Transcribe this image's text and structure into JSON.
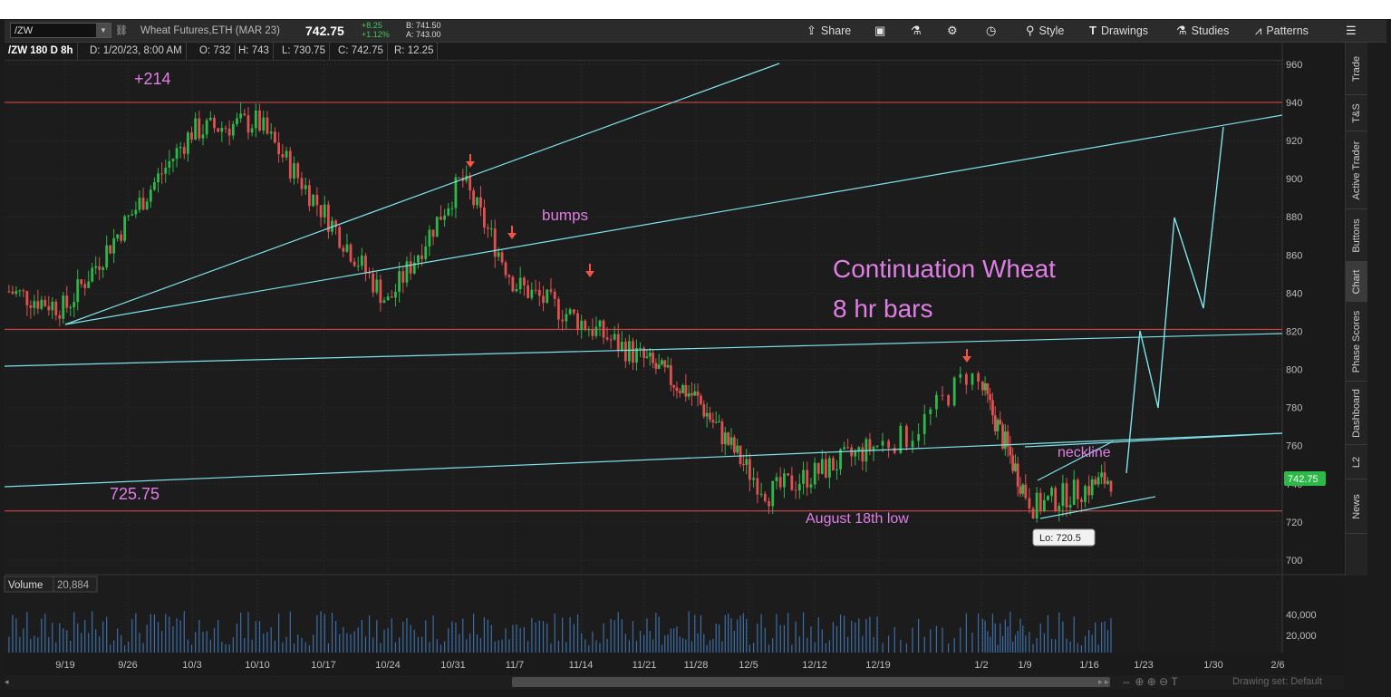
{
  "toolbar": {
    "symbol": "/ZW",
    "instrument": "Wheat Futures,ETH (MAR 23)",
    "last_price": "742.75",
    "change": "+8.25",
    "change_pct": "+1.12%",
    "bid": "B: 741.50",
    "ask": "A: 743.00",
    "share_label": "Share",
    "style_label": "Style",
    "drawings_label": "Drawings",
    "studies_label": "Studies",
    "patterns_label": "Patterns"
  },
  "infobar": {
    "chart_id": "/ZW 180 D 8h",
    "date": "D: 1/20/23, 8:00 AM",
    "open": "O: 732",
    "high": "H: 743",
    "low": "L: 730.75",
    "close": "C: 742.75",
    "range": "R: 12.25"
  },
  "sidebar_tabs": [
    "Trade",
    "T&S",
    "Active Trader",
    "Buttons",
    "Chart",
    "Phase Scores",
    "Dashboard",
    "L2",
    "News"
  ],
  "sidebar_active": "Chart",
  "volume": {
    "label": "Volume",
    "value": "20,884",
    "ticks": [
      "40,000",
      "20,000"
    ]
  },
  "chart_data": {
    "type": "candlestick",
    "y_ticks": [
      "960",
      "940",
      "920",
      "900",
      "880",
      "860",
      "840",
      "820",
      "800",
      "780",
      "760",
      "740",
      "720",
      "700"
    ],
    "x_ticks": [
      "9/19",
      "9/26",
      "10/3",
      "10/10",
      "10/17",
      "10/24",
      "10/31",
      "11/7",
      "11/14",
      "11/21",
      "11/28",
      "12/5",
      "12/12",
      "12/19",
      "1/2",
      "1/9",
      "1/16",
      "1/23",
      "1/30",
      "2/6"
    ],
    "price_tag": "742.75",
    "low_label": "Lo: 720.5",
    "annotations": {
      "gain": "+214",
      "level": "725.75",
      "bumps": "bumps",
      "title_line1": "Continuation Wheat",
      "title_line2": "8 hr bars",
      "aug_low": "August 18th low",
      "neckline": "neckline"
    },
    "key_points": [
      {
        "date": "9/19",
        "close": 832
      },
      {
        "date": "10/3",
        "close": 925
      },
      {
        "date": "10/10",
        "close": 930
      },
      {
        "date": "10/24",
        "close": 835
      },
      {
        "date": "11/1",
        "close": 900
      },
      {
        "date": "11/7",
        "close": 845
      },
      {
        "date": "11/14",
        "close": 825
      },
      {
        "date": "11/28",
        "close": 785
      },
      {
        "date": "12/7",
        "close": 735
      },
      {
        "date": "12/21",
        "close": 765
      },
      {
        "date": "12/30",
        "close": 798
      },
      {
        "date": "1/10",
        "close": 728
      },
      {
        "date": "1/20",
        "close": 742.75
      }
    ],
    "horizontal_levels": [
      940,
      821,
      725.75
    ],
    "colors": {
      "up": "#2fb84a",
      "down": "#e05050",
      "trendline": "#7fe3ea",
      "level": "#e34a4a",
      "annotation": "#e07ee6",
      "arrow": "#ee5545"
    }
  },
  "bottom": {
    "drawing_set": "Drawing set: Default"
  }
}
